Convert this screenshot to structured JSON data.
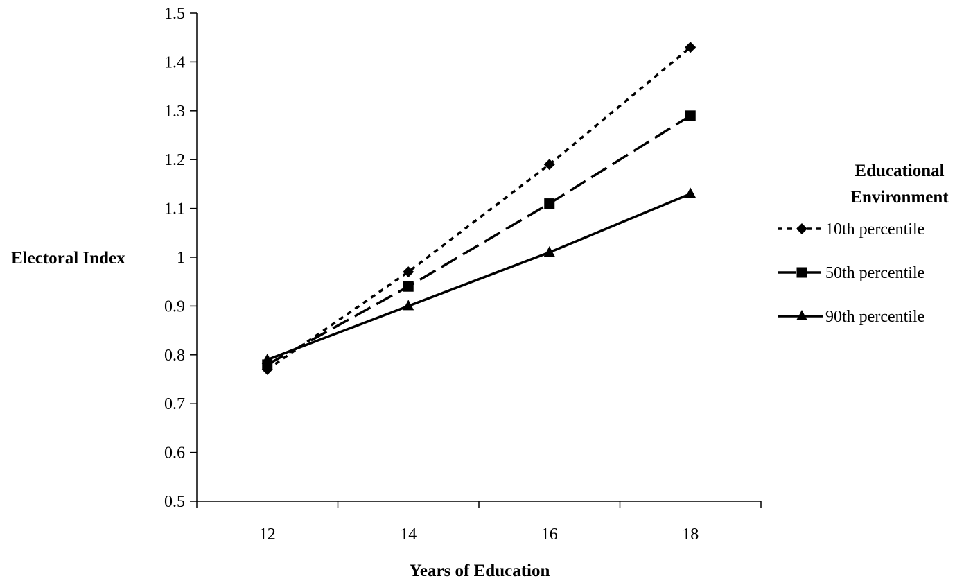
{
  "chart_data": {
    "type": "line",
    "title": "",
    "xlabel": "Years of Education",
    "ylabel": "Electoral Index",
    "x": [
      12,
      14,
      16,
      18
    ],
    "x_tick_labels": [
      "12",
      "14",
      "16",
      "18"
    ],
    "xlim": [
      11,
      19
    ],
    "ylim": [
      0.5,
      1.5
    ],
    "y_ticks": [
      0.5,
      0.6,
      0.7,
      0.8,
      0.9,
      1.0,
      1.1,
      1.2,
      1.3,
      1.4,
      1.5
    ],
    "y_tick_labels": [
      "0.5",
      "0.6",
      "0.7",
      "0.8",
      "0.9",
      "1",
      "1.1",
      "1.2",
      "1.3",
      "1.4",
      "1.5"
    ],
    "grid": false,
    "legend": {
      "title_lines": [
        "Educational",
        "Environment"
      ],
      "placement": "right"
    },
    "series": [
      {
        "name": "10th percentile",
        "values": [
          0.77,
          0.97,
          1.19,
          1.43
        ],
        "line_style": "dotted",
        "marker": "diamond"
      },
      {
        "name": "50th percentile",
        "values": [
          0.78,
          0.94,
          1.11,
          1.29
        ],
        "line_style": "dashed",
        "marker": "square"
      },
      {
        "name": "90th percentile",
        "values": [
          0.79,
          0.9,
          1.01,
          1.13
        ],
        "line_style": "solid",
        "marker": "triangle"
      }
    ]
  }
}
